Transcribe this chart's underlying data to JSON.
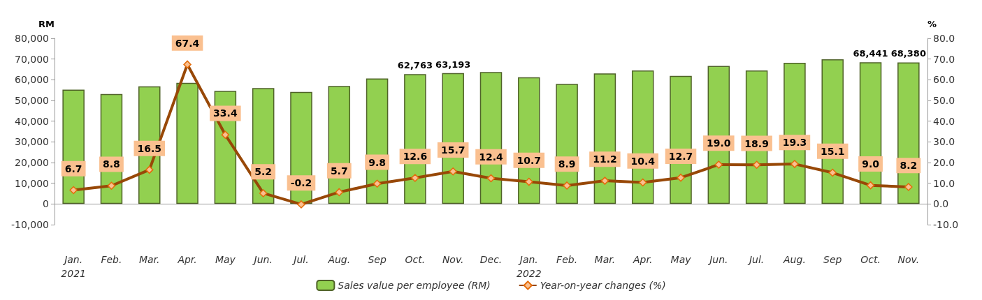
{
  "chart_data": {
    "type": "bar",
    "ylabel": "RM",
    "y2label": "%",
    "categories": [
      "Jan.\n2021",
      "Feb.",
      "Mar.",
      "Apr.",
      "May",
      "Jun.",
      "Jul.",
      "Aug.",
      "Sep",
      "Oct.",
      "Nov.",
      "Dec.",
      "Jan.\n2022",
      "Feb.",
      "Mar.",
      "Apr.",
      "May",
      "Jun.",
      "Jul.",
      "Aug.",
      "Sep",
      "Oct.",
      "Nov."
    ],
    "series": [
      {
        "name": "Sales value per employee (RM)",
        "color": "#92d050",
        "values": [
          55200,
          53100,
          56800,
          58500,
          54600,
          56000,
          54100,
          57000,
          60600,
          62763,
          63193,
          63700,
          61200,
          58000,
          63100,
          64500,
          61900,
          66700,
          64500,
          68200,
          69900,
          68441,
          68380
        ],
        "value_labels": [
          null,
          null,
          null,
          null,
          null,
          null,
          null,
          null,
          null,
          "62,763",
          "63,193",
          null,
          null,
          null,
          null,
          null,
          null,
          null,
          null,
          null,
          null,
          "68,441",
          "68,380"
        ]
      },
      {
        "name": "Year-on-year changes (%)",
        "type": "line",
        "axis": "y2",
        "color": "#984807",
        "marker": "diamond",
        "values": [
          6.7,
          8.8,
          16.5,
          67.4,
          33.4,
          5.2,
          -0.2,
          5.7,
          9.8,
          12.6,
          15.7,
          12.4,
          10.7,
          8.9,
          11.2,
          10.4,
          12.7,
          19.0,
          18.9,
          19.3,
          15.1,
          9.0,
          8.2
        ],
        "value_labels": [
          "6.7",
          "8.8",
          "16.5",
          "67.4",
          "33.4",
          "5.2",
          "-0.2",
          "5.7",
          "9.8",
          "12.6",
          "15.7",
          "12.4",
          "10.7",
          "8.9",
          "11.2",
          "10.4",
          "12.7",
          "19.0",
          "18.9",
          "19.3",
          "15.1",
          "9.0",
          "8.2"
        ]
      }
    ],
    "ylim": [
      -10000,
      80000
    ],
    "yticks": [
      {
        "value": -10000,
        "label": "-10,000"
      },
      0,
      {
        "value": 10000,
        "label": "10,000"
      },
      {
        "value": 20000,
        "label": "20,000"
      },
      {
        "value": 30000,
        "label": "30,000"
      },
      {
        "value": 40000,
        "label": "40,000"
      },
      {
        "value": 50000,
        "label": "50,000"
      },
      {
        "value": 60000,
        "label": "60,000"
      },
      {
        "value": 70000,
        "label": "70,000"
      },
      {
        "value": 80000,
        "label": "80,000"
      }
    ],
    "y2lim": [
      -10,
      80
    ],
    "y2ticks": [
      {
        "value": -10,
        "label": "-10.0"
      },
      {
        "value": 0,
        "label": "0.0"
      },
      {
        "value": 10,
        "label": "10.0"
      },
      {
        "value": 20,
        "label": "20.0"
      },
      {
        "value": 30,
        "label": "30.0"
      },
      {
        "value": 40,
        "label": "40.0"
      },
      {
        "value": 50,
        "label": "50.0"
      },
      {
        "value": 60,
        "label": "60.0"
      },
      {
        "value": 70,
        "label": "70.0"
      },
      {
        "value": 80,
        "label": "80.0"
      }
    ],
    "legend": "bottom"
  }
}
